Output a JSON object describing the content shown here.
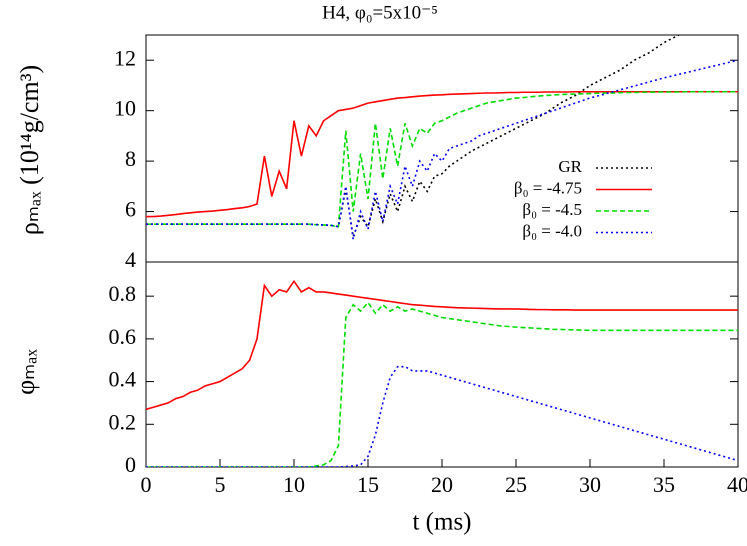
{
  "chart_data": [
    {
      "type": "line",
      "title": "H4, φ₀=5x10⁻⁵",
      "ylabel": "ρₘₐₓ (10¹⁴g/cm³)",
      "xlim": [
        0,
        40
      ],
      "ylim": [
        4,
        13
      ],
      "yticks": [
        4,
        6,
        8,
        10,
        12
      ],
      "grid": false,
      "legend": "right",
      "x": [
        0,
        0.5,
        1,
        1.5,
        2,
        2.5,
        3,
        3.5,
        4,
        4.5,
        5,
        5.5,
        6,
        6.5,
        7,
        7.5,
        8,
        8.5,
        9,
        9.5,
        10,
        10.5,
        11,
        11.5,
        12,
        12.5,
        13,
        13.5,
        14,
        14.5,
        15,
        15.5,
        16,
        16.5,
        17,
        17.5,
        18,
        18.5,
        19,
        19.5,
        20,
        20.5,
        21,
        21.5,
        22,
        22.5,
        23,
        23.5,
        24,
        24.5,
        25,
        25.5,
        26,
        26.5,
        27,
        27.5,
        28,
        28.5,
        29,
        29.5,
        30,
        30.5,
        31,
        31.5,
        32,
        32.5,
        33,
        33.5,
        34,
        34.5,
        35,
        35.5,
        36,
        36.5,
        37,
        37.5,
        38,
        38.5,
        39,
        39.5,
        40
      ],
      "series": [
        {
          "name": "GR",
          "color": "#000000",
          "dash": "dotted",
          "values": [
            5.5,
            5.5,
            5.5,
            5.5,
            5.5,
            5.5,
            5.5,
            5.5,
            5.5,
            5.5,
            5.5,
            5.5,
            5.5,
            5.5,
            5.5,
            5.5,
            5.5,
            5.5,
            5.5,
            5.5,
            5.5,
            5.5,
            5.5,
            5.48,
            5.47,
            5.45,
            5.4,
            6.9,
            5.0,
            5.8,
            5.4,
            6.5,
            5.6,
            6.7,
            6.0,
            7.0,
            6.4,
            7.2,
            6.8,
            7.4,
            7.5,
            7.8,
            8.0,
            8.2,
            8.4,
            8.55,
            8.7,
            8.85,
            9.0,
            9.15,
            9.3,
            9.45,
            9.6,
            9.75,
            9.9,
            10.1,
            10.3,
            10.45,
            10.6,
            10.8,
            11.0,
            11.15,
            11.3,
            11.45,
            11.6,
            11.8,
            12.0,
            12.15,
            12.3,
            12.5,
            12.7,
            12.85,
            13.0,
            null,
            null,
            null,
            null,
            null,
            null,
            null,
            null
          ]
        },
        {
          "name": "β₀ = -4.75",
          "color": "#ff0000",
          "dash": "solid",
          "values": [
            5.8,
            5.8,
            5.82,
            5.85,
            5.88,
            5.92,
            5.95,
            5.98,
            6.0,
            6.02,
            6.05,
            6.08,
            6.12,
            6.15,
            6.2,
            6.3,
            8.2,
            6.6,
            7.6,
            6.9,
            9.6,
            8.2,
            9.4,
            9.0,
            9.6,
            9.8,
            10.0,
            10.05,
            10.1,
            10.2,
            10.3,
            10.35,
            10.4,
            10.45,
            10.5,
            10.52,
            10.55,
            10.58,
            10.6,
            10.62,
            10.63,
            10.65,
            10.66,
            10.67,
            10.68,
            10.69,
            10.7,
            10.7,
            10.71,
            10.72,
            10.72,
            10.73,
            10.73,
            10.73,
            10.74,
            10.74,
            10.74,
            10.74,
            10.75,
            10.75,
            10.75,
            10.75,
            10.75,
            10.75,
            10.75,
            10.75,
            10.75,
            10.75,
            10.75,
            10.75,
            10.75,
            10.75,
            10.75,
            10.75,
            10.75,
            10.75,
            10.75,
            10.75,
            10.75,
            10.75,
            10.75
          ]
        },
        {
          "name": "β₀ = -4.5",
          "color": "#00dd00",
          "dash": "dashed",
          "values": [
            5.5,
            5.5,
            5.5,
            5.5,
            5.5,
            5.5,
            5.5,
            5.5,
            5.5,
            5.5,
            5.5,
            5.5,
            5.5,
            5.5,
            5.5,
            5.5,
            5.5,
            5.5,
            5.5,
            5.5,
            5.5,
            5.5,
            5.5,
            5.48,
            5.47,
            5.45,
            5.4,
            9.2,
            6.0,
            8.3,
            6.5,
            9.5,
            7.3,
            9.3,
            7.8,
            9.5,
            8.6,
            9.3,
            9.1,
            9.5,
            9.6,
            9.75,
            9.9,
            10.0,
            10.1,
            10.2,
            10.3,
            10.35,
            10.4,
            10.45,
            10.5,
            10.52,
            10.55,
            10.58,
            10.6,
            10.62,
            10.64,
            10.65,
            10.66,
            10.67,
            10.68,
            10.69,
            10.7,
            10.7,
            10.71,
            10.72,
            10.72,
            10.73,
            10.73,
            10.74,
            10.74,
            10.74,
            10.74,
            10.75,
            10.75,
            10.75,
            10.75,
            10.75,
            10.75,
            10.75,
            10.75
          ]
        },
        {
          "name": "β₀ = -4.0",
          "color": "#0000ff",
          "dash": "dotted",
          "values": [
            5.5,
            5.5,
            5.5,
            5.5,
            5.5,
            5.5,
            5.5,
            5.5,
            5.5,
            5.5,
            5.5,
            5.5,
            5.5,
            5.5,
            5.5,
            5.5,
            5.5,
            5.5,
            5.5,
            5.5,
            5.5,
            5.5,
            5.5,
            5.48,
            5.47,
            5.45,
            5.4,
            7.0,
            4.9,
            6.0,
            5.3,
            6.8,
            5.6,
            7.0,
            6.3,
            7.8,
            7.0,
            8.0,
            7.6,
            8.3,
            8.0,
            8.5,
            8.6,
            8.7,
            8.8,
            9.0,
            9.1,
            9.2,
            9.3,
            9.4,
            9.5,
            9.6,
            9.7,
            9.8,
            9.9,
            10.0,
            10.1,
            10.2,
            10.3,
            10.4,
            10.5,
            10.58,
            10.66,
            10.74,
            10.82,
            10.9,
            10.98,
            11.06,
            11.14,
            11.22,
            11.3,
            11.37,
            11.44,
            11.51,
            11.58,
            11.65,
            11.72,
            11.79,
            11.86,
            11.93,
            12.0
          ]
        }
      ]
    },
    {
      "type": "line",
      "ylabel": "φₘₐₓ",
      "xlabel": "t (ms)",
      "xlim": [
        0,
        40
      ],
      "xticks": [
        0,
        5,
        10,
        15,
        20,
        25,
        30,
        35,
        40
      ],
      "ylim": [
        0,
        0.96
      ],
      "yticks": [
        0,
        0.2,
        0.4,
        0.6,
        0.8
      ],
      "grid": false,
      "x": [
        0,
        0.5,
        1,
        1.5,
        2,
        2.5,
        3,
        3.5,
        4,
        4.5,
        5,
        5.5,
        6,
        6.5,
        7,
        7.5,
        8,
        8.5,
        9,
        9.5,
        10,
        10.5,
        11,
        11.5,
        12,
        12.5,
        13,
        13.5,
        14,
        14.5,
        15,
        15.5,
        16,
        16.5,
        17,
        17.5,
        18,
        18.5,
        19,
        19.5,
        20,
        20.5,
        21,
        21.5,
        22,
        22.5,
        23,
        23.5,
        24,
        24.5,
        25,
        25.5,
        26,
        26.5,
        27,
        27.5,
        28,
        28.5,
        29,
        29.5,
        30,
        30.5,
        31,
        31.5,
        32,
        32.5,
        33,
        33.5,
        34,
        34.5,
        35,
        35.5,
        36,
        36.5,
        37,
        37.5,
        38,
        38.5,
        39,
        39.5,
        40
      ],
      "series": [
        {
          "color": "#ff0000",
          "dash": "solid",
          "values": [
            0.27,
            0.28,
            0.29,
            0.3,
            0.32,
            0.33,
            0.35,
            0.36,
            0.38,
            0.39,
            0.4,
            0.42,
            0.44,
            0.46,
            0.5,
            0.6,
            0.85,
            0.8,
            0.83,
            0.82,
            0.87,
            0.82,
            0.84,
            0.82,
            0.82,
            0.815,
            0.81,
            0.805,
            0.8,
            0.795,
            0.79,
            0.785,
            0.78,
            0.775,
            0.77,
            0.765,
            0.76,
            0.758,
            0.755,
            0.752,
            0.75,
            0.748,
            0.746,
            0.745,
            0.744,
            0.743,
            0.742,
            0.741,
            0.74,
            0.74,
            0.74,
            0.739,
            0.738,
            0.737,
            0.737,
            0.736,
            0.736,
            0.736,
            0.735,
            0.735,
            0.735,
            0.735,
            0.735,
            0.735,
            0.735,
            0.735,
            0.735,
            0.735,
            0.735,
            0.735,
            0.735,
            0.735,
            0.735,
            0.735,
            0.735,
            0.735,
            0.735,
            0.735,
            0.735,
            0.735,
            0.735
          ]
        },
        {
          "color": "#00dd00",
          "dash": "dashed",
          "values": [
            0,
            0,
            0,
            0,
            0,
            0,
            0,
            0,
            0,
            0,
            0,
            0,
            0,
            0,
            0,
            0,
            0,
            0,
            0,
            0,
            0,
            0,
            0,
            0.005,
            0.01,
            0.03,
            0.1,
            0.7,
            0.76,
            0.73,
            0.77,
            0.72,
            0.76,
            0.73,
            0.75,
            0.73,
            0.74,
            0.73,
            0.72,
            0.71,
            0.7,
            0.695,
            0.69,
            0.685,
            0.68,
            0.675,
            0.67,
            0.665,
            0.66,
            0.658,
            0.655,
            0.653,
            0.651,
            0.649,
            0.647,
            0.645,
            0.644,
            0.643,
            0.642,
            0.641,
            0.64,
            0.64,
            0.64,
            0.64,
            0.64,
            0.64,
            0.64,
            0.64,
            0.64,
            0.64,
            0.64,
            0.64,
            0.64,
            0.64,
            0.64,
            0.64,
            0.64,
            0.64,
            0.64,
            0.64,
            0.64
          ]
        },
        {
          "color": "#0000ff",
          "dash": "dotted",
          "values": [
            0,
            0,
            0,
            0,
            0,
            0,
            0,
            0,
            0,
            0,
            0,
            0,
            0,
            0,
            0,
            0,
            0,
            0,
            0,
            0,
            0,
            0,
            0,
            0,
            0,
            0,
            0,
            0.002,
            0.005,
            0.01,
            0.05,
            0.15,
            0.3,
            0.42,
            0.47,
            0.47,
            0.45,
            0.45,
            0.45,
            0.44,
            0.43,
            0.42,
            0.41,
            0.4,
            0.39,
            0.38,
            0.37,
            0.36,
            0.35,
            0.34,
            0.33,
            0.32,
            0.31,
            0.3,
            0.29,
            0.28,
            0.27,
            0.26,
            0.25,
            0.24,
            0.23,
            0.22,
            0.21,
            0.2,
            0.19,
            0.18,
            0.17,
            0.16,
            0.15,
            0.14,
            0.13,
            0.12,
            0.11,
            0.1,
            0.09,
            0.08,
            0.07,
            0.06,
            0.05,
            0.04,
            0.03
          ]
        }
      ]
    }
  ]
}
